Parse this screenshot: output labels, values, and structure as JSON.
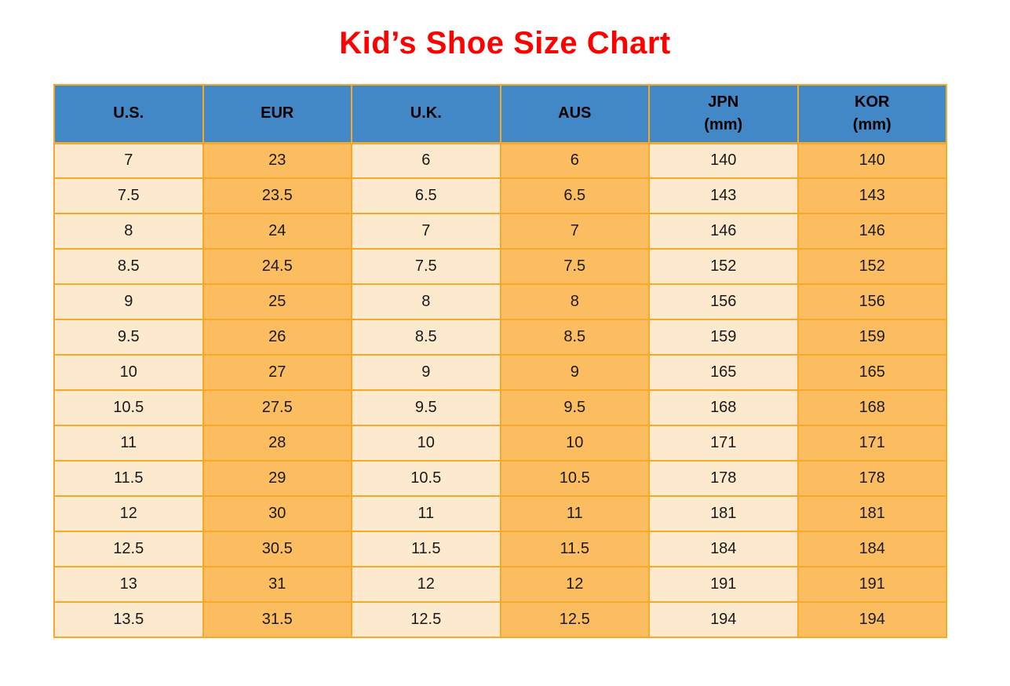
{
  "page_title": "Kid’s Shoe Size Chart",
  "colors": {
    "title-red": "#fe0000",
    "header-blue": "#4287c6",
    "cell-cream": "#fde9cd",
    "cell-orange": "#fcbd60",
    "border-orange": "#f7a827",
    "header-text": "#000000",
    "cell-text": "#1a1a1a"
  },
  "table": {
    "headers": [
      {
        "label": "U.S.",
        "sublabel": ""
      },
      {
        "label": "EUR",
        "sublabel": ""
      },
      {
        "label": "U.K.",
        "sublabel": ""
      },
      {
        "label": "AUS",
        "sublabel": ""
      },
      {
        "label": "JPN",
        "sublabel": "(mm)"
      },
      {
        "label": "KOR",
        "sublabel": "(mm)"
      }
    ]
  },
  "chart_data": {
    "type": "table",
    "title": "Kid’s Shoe Size Chart",
    "columns": [
      "U.S.",
      "EUR",
      "U.K.",
      "AUS",
      "JPN (mm)",
      "KOR (mm)"
    ],
    "rows": [
      [
        "7",
        "23",
        "6",
        "6",
        "140",
        "140"
      ],
      [
        "7.5",
        "23.5",
        "6.5",
        "6.5",
        "143",
        "143"
      ],
      [
        "8",
        "24",
        "7",
        "7",
        "146",
        "146"
      ],
      [
        "8.5",
        "24.5",
        "7.5",
        "7.5",
        "152",
        "152"
      ],
      [
        "9",
        "25",
        "8",
        "8",
        "156",
        "156"
      ],
      [
        "9.5",
        "26",
        "8.5",
        "8.5",
        "159",
        "159"
      ],
      [
        "10",
        "27",
        "9",
        "9",
        "165",
        "165"
      ],
      [
        "10.5",
        "27.5",
        "9.5",
        "9.5",
        "168",
        "168"
      ],
      [
        "11",
        "28",
        "10",
        "10",
        "171",
        "171"
      ],
      [
        "11.5",
        "29",
        "10.5",
        "10.5",
        "178",
        "178"
      ],
      [
        "12",
        "30",
        "11",
        "11",
        "181",
        "181"
      ],
      [
        "12.5",
        "30.5",
        "11.5",
        "11.5",
        "184",
        "184"
      ],
      [
        "13",
        "31",
        "12",
        "12",
        "191",
        "191"
      ],
      [
        "13.5",
        "31.5",
        "12.5",
        "12.5",
        "194",
        "194"
      ]
    ],
    "layout": {
      "header_background": "blue",
      "column_fill_alternation": [
        "cream",
        "orange",
        "cream",
        "orange",
        "cream",
        "orange"
      ],
      "grid": true
    }
  }
}
